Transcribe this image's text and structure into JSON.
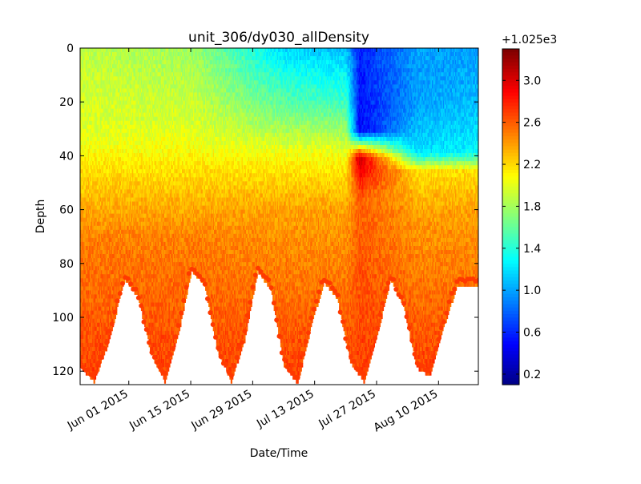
{
  "chart_data": {
    "type": "scatter",
    "title": "unit_306/dy030_allDensity",
    "xlabel": "Date/Time",
    "ylabel": "Depth",
    "x_range": [
      "2015-05-21",
      "2015-08-19"
    ],
    "x_ticks": [
      "Jun 01 2015",
      "Jun 15 2015",
      "Jun 29 2015",
      "Jul 13 2015",
      "Jul 27 2015",
      "Aug 10 2015"
    ],
    "x_tick_dates": [
      "2015-06-01",
      "2015-06-15",
      "2015-06-29",
      "2015-07-13",
      "2015-07-27",
      "2015-08-10"
    ],
    "ylim": [
      125,
      0
    ],
    "y_inverted": true,
    "y_ticks": [
      0,
      20,
      40,
      60,
      80,
      100,
      120
    ],
    "colorbar": {
      "offset_label": "+1.025e3",
      "cmap": "jet",
      "range": [
        0.1,
        3.3
      ],
      "ticks": [
        "0.2",
        "0.6",
        "1.0",
        "1.4",
        "1.8",
        "2.2",
        "2.6",
        "3.0"
      ],
      "tick_values": [
        0.2,
        0.6,
        1.0,
        1.4,
        1.8,
        2.2,
        2.6,
        3.0
      ]
    },
    "max_depth_envelope": [
      {
        "date": "2015-05-21",
        "depth": 118
      },
      {
        "date": "2015-05-24",
        "depth": 123
      },
      {
        "date": "2015-05-27",
        "depth": 110
      },
      {
        "date": "2015-05-31",
        "depth": 85
      },
      {
        "date": "2015-06-03",
        "depth": 92
      },
      {
        "date": "2015-06-06",
        "depth": 113
      },
      {
        "date": "2015-06-09",
        "depth": 123
      },
      {
        "date": "2015-06-12",
        "depth": 106
      },
      {
        "date": "2015-06-15",
        "depth": 82
      },
      {
        "date": "2015-06-18",
        "depth": 87
      },
      {
        "date": "2015-06-21",
        "depth": 112
      },
      {
        "date": "2015-06-24",
        "depth": 123
      },
      {
        "date": "2015-06-27",
        "depth": 108
      },
      {
        "date": "2015-06-30",
        "depth": 82
      },
      {
        "date": "2015-07-03",
        "depth": 89
      },
      {
        "date": "2015-07-06",
        "depth": 117
      },
      {
        "date": "2015-07-09",
        "depth": 124
      },
      {
        "date": "2015-07-12",
        "depth": 103
      },
      {
        "date": "2015-07-15",
        "depth": 86
      },
      {
        "date": "2015-07-18",
        "depth": 92
      },
      {
        "date": "2015-07-21",
        "depth": 116
      },
      {
        "date": "2015-07-24",
        "depth": 123
      },
      {
        "date": "2015-07-27",
        "depth": 106
      },
      {
        "date": "2015-07-30",
        "depth": 85
      },
      {
        "date": "2015-08-02",
        "depth": 95
      },
      {
        "date": "2015-08-05",
        "depth": 118
      },
      {
        "date": "2015-08-08",
        "depth": 121
      },
      {
        "date": "2015-08-11",
        "depth": 103
      },
      {
        "date": "2015-08-14",
        "depth": 88
      },
      {
        "date": "2015-08-17",
        "depth": 87
      },
      {
        "date": "2015-08-19",
        "depth": 87
      }
    ],
    "density_profiles": [
      {
        "date": "2015-05-21",
        "points": [
          [
            0,
            1.9
          ],
          [
            30,
            2.0
          ],
          [
            45,
            2.2
          ],
          [
            70,
            2.5
          ],
          [
            120,
            2.7
          ]
        ]
      },
      {
        "date": "2015-06-15",
        "points": [
          [
            0,
            1.8
          ],
          [
            30,
            2.0
          ],
          [
            45,
            2.2
          ],
          [
            70,
            2.5
          ],
          [
            120,
            2.7
          ]
        ]
      },
      {
        "date": "2015-07-06",
        "points": [
          [
            0,
            1.2
          ],
          [
            20,
            1.6
          ],
          [
            40,
            2.1
          ],
          [
            60,
            2.4
          ],
          [
            120,
            2.7
          ]
        ]
      },
      {
        "date": "2015-07-20",
        "points": [
          [
            0,
            1.1
          ],
          [
            20,
            1.5
          ],
          [
            40,
            2.1
          ],
          [
            60,
            2.4
          ],
          [
            120,
            2.7
          ]
        ]
      },
      {
        "date": "2015-07-23",
        "points": [
          [
            0,
            0.6
          ],
          [
            30,
            0.5
          ],
          [
            40,
            3.1
          ],
          [
            55,
            2.6
          ],
          [
            120,
            2.7
          ]
        ]
      },
      {
        "date": "2015-08-05",
        "points": [
          [
            0,
            1.0
          ],
          [
            20,
            1.0
          ],
          [
            38,
            1.2
          ],
          [
            45,
            2.2
          ],
          [
            60,
            2.4
          ],
          [
            120,
            2.7
          ]
        ]
      },
      {
        "date": "2015-08-19",
        "points": [
          [
            0,
            1.0
          ],
          [
            20,
            1.1
          ],
          [
            38,
            1.3
          ],
          [
            45,
            2.2
          ],
          [
            60,
            2.4
          ],
          [
            120,
            2.7
          ]
        ]
      }
    ]
  }
}
